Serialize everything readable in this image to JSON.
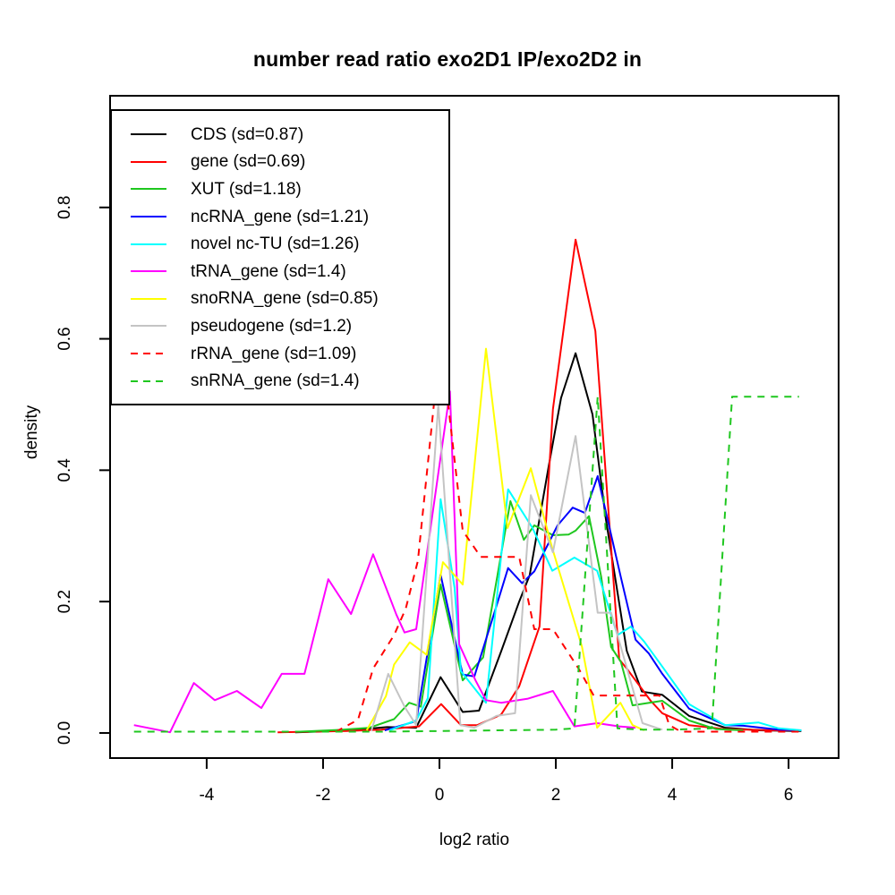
{
  "title": "number read ratio exo2D1 IP/exo2D2 in",
  "axes": {
    "xlabel": "log2 ratio",
    "ylabel": "density"
  },
  "chart_data": {
    "type": "line",
    "title": "number read ratio exo2D1 IP/exo2D2 in",
    "xlabel": "log2 ratio",
    "ylabel": "density",
    "xlim": [
      -5.66,
      6.86
    ],
    "ylim": [
      -0.0382,
      0.97
    ],
    "grid": false,
    "legend_position": "top-left",
    "x_ticks": [
      {
        "label": "-4",
        "value": -4
      },
      {
        "label": "-2",
        "value": -2
      },
      {
        "label": "0",
        "value": 0
      },
      {
        "label": "2",
        "value": 2
      },
      {
        "label": "4",
        "value": 4
      },
      {
        "label": "6",
        "value": 6
      }
    ],
    "y_ticks": [
      {
        "label": "0.0",
        "value": 0.0
      },
      {
        "label": "0.2",
        "value": 0.2
      },
      {
        "label": "0.4",
        "value": 0.4
      },
      {
        "label": "0.6",
        "value": 0.6
      },
      {
        "label": "0.8",
        "value": 0.8
      }
    ],
    "series": [
      {
        "name": "CDS",
        "legend_label": "CDS (sd=0.87)",
        "color": "#000000",
        "linestyle": "solid",
        "points": [
          [
            -2.48,
            0.001
          ],
          [
            -2.1,
            0.002
          ],
          [
            -1.7,
            0.004
          ],
          [
            -1.3,
            0.006
          ],
          [
            -0.9,
            0.009
          ],
          [
            -0.4,
            0.008
          ],
          [
            0.02,
            0.085
          ],
          [
            0.4,
            0.032
          ],
          [
            0.68,
            0.034
          ],
          [
            1.06,
            0.124
          ],
          [
            1.37,
            0.2
          ],
          [
            1.55,
            0.24
          ],
          [
            1.88,
            0.407
          ],
          [
            2.09,
            0.51
          ],
          [
            2.34,
            0.578
          ],
          [
            2.63,
            0.485
          ],
          [
            2.86,
            0.326
          ],
          [
            3.22,
            0.125
          ],
          [
            3.48,
            0.063
          ],
          [
            3.83,
            0.058
          ],
          [
            4.29,
            0.026
          ],
          [
            4.91,
            0.008
          ],
          [
            5.5,
            0.004
          ],
          [
            6.22,
            0.003
          ]
        ]
      },
      {
        "name": "gene",
        "legend_label": "gene (sd=0.69)",
        "color": "#ff0000",
        "linestyle": "solid",
        "points": [
          [
            -2.78,
            0.001
          ],
          [
            -2.2,
            0.002
          ],
          [
            -1.6,
            0.003
          ],
          [
            -1.0,
            0.005
          ],
          [
            -0.35,
            0.01
          ],
          [
            0.03,
            0.044
          ],
          [
            0.37,
            0.012
          ],
          [
            0.65,
            0.012
          ],
          [
            1.06,
            0.028
          ],
          [
            1.37,
            0.071
          ],
          [
            1.72,
            0.162
          ],
          [
            1.95,
            0.493
          ],
          [
            2.34,
            0.751
          ],
          [
            2.68,
            0.612
          ],
          [
            3.09,
            0.112
          ],
          [
            3.22,
            0.098
          ],
          [
            3.63,
            0.049
          ],
          [
            3.83,
            0.03
          ],
          [
            4.29,
            0.012
          ],
          [
            4.9,
            0.006
          ],
          [
            5.75,
            0.004
          ],
          [
            6.22,
            0.004
          ]
        ]
      },
      {
        "name": "XUT",
        "legend_label": "XUT (sd=1.18)",
        "color": "#1fc71f",
        "linestyle": "solid",
        "points": [
          [
            -2.4,
            0.002
          ],
          [
            -1.66,
            0.005
          ],
          [
            -1.2,
            0.008
          ],
          [
            -0.78,
            0.021
          ],
          [
            -0.52,
            0.046
          ],
          [
            -0.32,
            0.04
          ],
          [
            0.02,
            0.226
          ],
          [
            0.4,
            0.08
          ],
          [
            0.75,
            0.115
          ],
          [
            1.22,
            0.353
          ],
          [
            1.45,
            0.294
          ],
          [
            1.63,
            0.316
          ],
          [
            1.95,
            0.301
          ],
          [
            2.22,
            0.302
          ],
          [
            2.34,
            0.308
          ],
          [
            2.57,
            0.33
          ],
          [
            2.78,
            0.238
          ],
          [
            2.95,
            0.131
          ],
          [
            3.12,
            0.108
          ],
          [
            3.32,
            0.042
          ],
          [
            3.83,
            0.049
          ],
          [
            4.29,
            0.019
          ],
          [
            4.75,
            0.006
          ],
          [
            5.22,
            0.004
          ]
        ]
      },
      {
        "name": "ncRNA_gene",
        "legend_label": "ncRNA_gene (sd=1.21)",
        "color": "#0000ff",
        "linestyle": "solid",
        "points": [
          [
            -0.94,
            0.004
          ],
          [
            -0.4,
            0.018
          ],
          [
            0.02,
            0.241
          ],
          [
            0.4,
            0.089
          ],
          [
            0.6,
            0.086
          ],
          [
            0.95,
            0.185
          ],
          [
            1.18,
            0.251
          ],
          [
            1.42,
            0.228
          ],
          [
            1.63,
            0.246
          ],
          [
            2.03,
            0.316
          ],
          [
            2.29,
            0.343
          ],
          [
            2.5,
            0.335
          ],
          [
            2.72,
            0.391
          ],
          [
            3.11,
            0.24
          ],
          [
            3.37,
            0.142
          ],
          [
            3.6,
            0.121
          ],
          [
            3.83,
            0.09
          ],
          [
            4.29,
            0.037
          ],
          [
            4.91,
            0.012
          ],
          [
            5.22,
            0.011
          ],
          [
            5.83,
            0.005
          ],
          [
            6.22,
            0.004
          ]
        ]
      },
      {
        "name": "novel nc-TU",
        "legend_label": "novel nc-TU (sd=1.26)",
        "color": "#00ffff",
        "linestyle": "solid",
        "points": [
          [
            -0.86,
            0.004
          ],
          [
            -0.4,
            0.019
          ],
          [
            -0.2,
            0.053
          ],
          [
            0.02,
            0.356
          ],
          [
            0.26,
            0.221
          ],
          [
            0.37,
            0.094
          ],
          [
            0.8,
            0.046
          ],
          [
            1.18,
            0.371
          ],
          [
            1.6,
            0.312
          ],
          [
            1.94,
            0.247
          ],
          [
            2.32,
            0.267
          ],
          [
            2.71,
            0.247
          ],
          [
            3.06,
            0.149
          ],
          [
            3.29,
            0.162
          ],
          [
            3.52,
            0.139
          ],
          [
            3.83,
            0.101
          ],
          [
            4.29,
            0.044
          ],
          [
            4.91,
            0.012
          ],
          [
            5.48,
            0.016
          ],
          [
            5.83,
            0.007
          ],
          [
            6.22,
            0.004
          ]
        ]
      },
      {
        "name": "tRNA_gene",
        "legend_label": "tRNA_gene (sd=1.4)",
        "color": "#ff00ff",
        "linestyle": "solid",
        "points": [
          [
            -5.25,
            0.012
          ],
          [
            -4.63,
            0.001
          ],
          [
            -4.22,
            0.076
          ],
          [
            -3.86,
            0.05
          ],
          [
            -3.48,
            0.064
          ],
          [
            -3.06,
            0.038
          ],
          [
            -2.71,
            0.09
          ],
          [
            -2.32,
            0.09
          ],
          [
            -1.91,
            0.234
          ],
          [
            -1.52,
            0.181
          ],
          [
            -1.14,
            0.272
          ],
          [
            -0.74,
            0.18
          ],
          [
            -0.6,
            0.153
          ],
          [
            -0.4,
            0.158
          ],
          [
            0.18,
            0.52
          ],
          [
            0.34,
            0.135
          ],
          [
            0.62,
            0.08
          ],
          [
            0.8,
            0.05
          ],
          [
            1.06,
            0.046
          ],
          [
            1.51,
            0.052
          ],
          [
            1.95,
            0.064
          ],
          [
            2.32,
            0.01
          ],
          [
            2.71,
            0.015
          ],
          [
            3.09,
            0.01
          ],
          [
            3.37,
            0.008
          ]
        ]
      },
      {
        "name": "snoRNA_gene",
        "legend_label": "snoRNA_gene (sd=0.85)",
        "color": "#ffff00",
        "linestyle": "solid",
        "points": [
          [
            -1.25,
            0.004
          ],
          [
            -0.92,
            0.056
          ],
          [
            -0.78,
            0.104
          ],
          [
            -0.51,
            0.138
          ],
          [
            -0.22,
            0.119
          ],
          [
            0.06,
            0.26
          ],
          [
            0.4,
            0.226
          ],
          [
            0.8,
            0.585
          ],
          [
            1.17,
            0.312
          ],
          [
            1.57,
            0.403
          ],
          [
            1.94,
            0.281
          ],
          [
            2.45,
            0.131
          ],
          [
            2.71,
            0.008
          ],
          [
            3.11,
            0.046
          ],
          [
            3.32,
            0.012
          ],
          [
            3.52,
            0.004
          ]
        ]
      },
      {
        "name": "pseudogene",
        "legend_label": "pseudogene (sd=1.2)",
        "color": "#c4c4c4",
        "linestyle": "solid",
        "points": [
          [
            -1.17,
            0.003
          ],
          [
            -0.88,
            0.09
          ],
          [
            -0.6,
            0.04
          ],
          [
            -0.4,
            0.012
          ],
          [
            -0.02,
            0.5
          ],
          [
            0.36,
            0.012
          ],
          [
            0.6,
            0.008
          ],
          [
            0.98,
            0.026
          ],
          [
            1.3,
            0.03
          ],
          [
            1.57,
            0.362
          ],
          [
            1.95,
            0.275
          ],
          [
            2.34,
            0.452
          ],
          [
            2.72,
            0.183
          ],
          [
            2.95,
            0.183
          ],
          [
            3.49,
            0.015
          ],
          [
            3.83,
            0.005
          ]
        ]
      },
      {
        "name": "rRNA_gene",
        "legend_label": "rRNA_gene (sd=1.09)",
        "color": "#ff0000",
        "linestyle": "dashed",
        "points": [
          [
            -1.78,
            0.002
          ],
          [
            -1.4,
            0.02
          ],
          [
            -1.14,
            0.098
          ],
          [
            -0.78,
            0.149
          ],
          [
            -0.58,
            0.189
          ],
          [
            -0.37,
            0.262
          ],
          [
            0.02,
            0.6
          ],
          [
            0.4,
            0.308
          ],
          [
            0.71,
            0.268
          ],
          [
            1.37,
            0.268
          ],
          [
            1.63,
            0.158
          ],
          [
            1.95,
            0.158
          ],
          [
            2.4,
            0.097
          ],
          [
            2.65,
            0.057
          ],
          [
            3.78,
            0.057
          ],
          [
            3.95,
            0.012
          ],
          [
            4.15,
            0.002
          ],
          [
            6.22,
            0.002
          ]
        ]
      },
      {
        "name": "snRNA_gene",
        "legend_label": "snRNA_gene (sd=1.4)",
        "color": "#1fc71f",
        "linestyle": "dashed",
        "points": [
          [
            -5.25,
            0.002
          ],
          [
            -4.0,
            0.002
          ],
          [
            -3.0,
            0.002
          ],
          [
            -2.0,
            0.002
          ],
          [
            -1.0,
            0.002
          ],
          [
            0.0,
            0.003
          ],
          [
            1.0,
            0.004
          ],
          [
            2.0,
            0.005
          ],
          [
            2.32,
            0.007
          ],
          [
            2.72,
            0.512
          ],
          [
            3.06,
            0.007
          ],
          [
            3.5,
            0.005
          ],
          [
            4.0,
            0.005
          ],
          [
            4.68,
            0.007
          ],
          [
            5.03,
            0.512
          ],
          [
            6.18,
            0.512
          ]
        ]
      }
    ]
  }
}
